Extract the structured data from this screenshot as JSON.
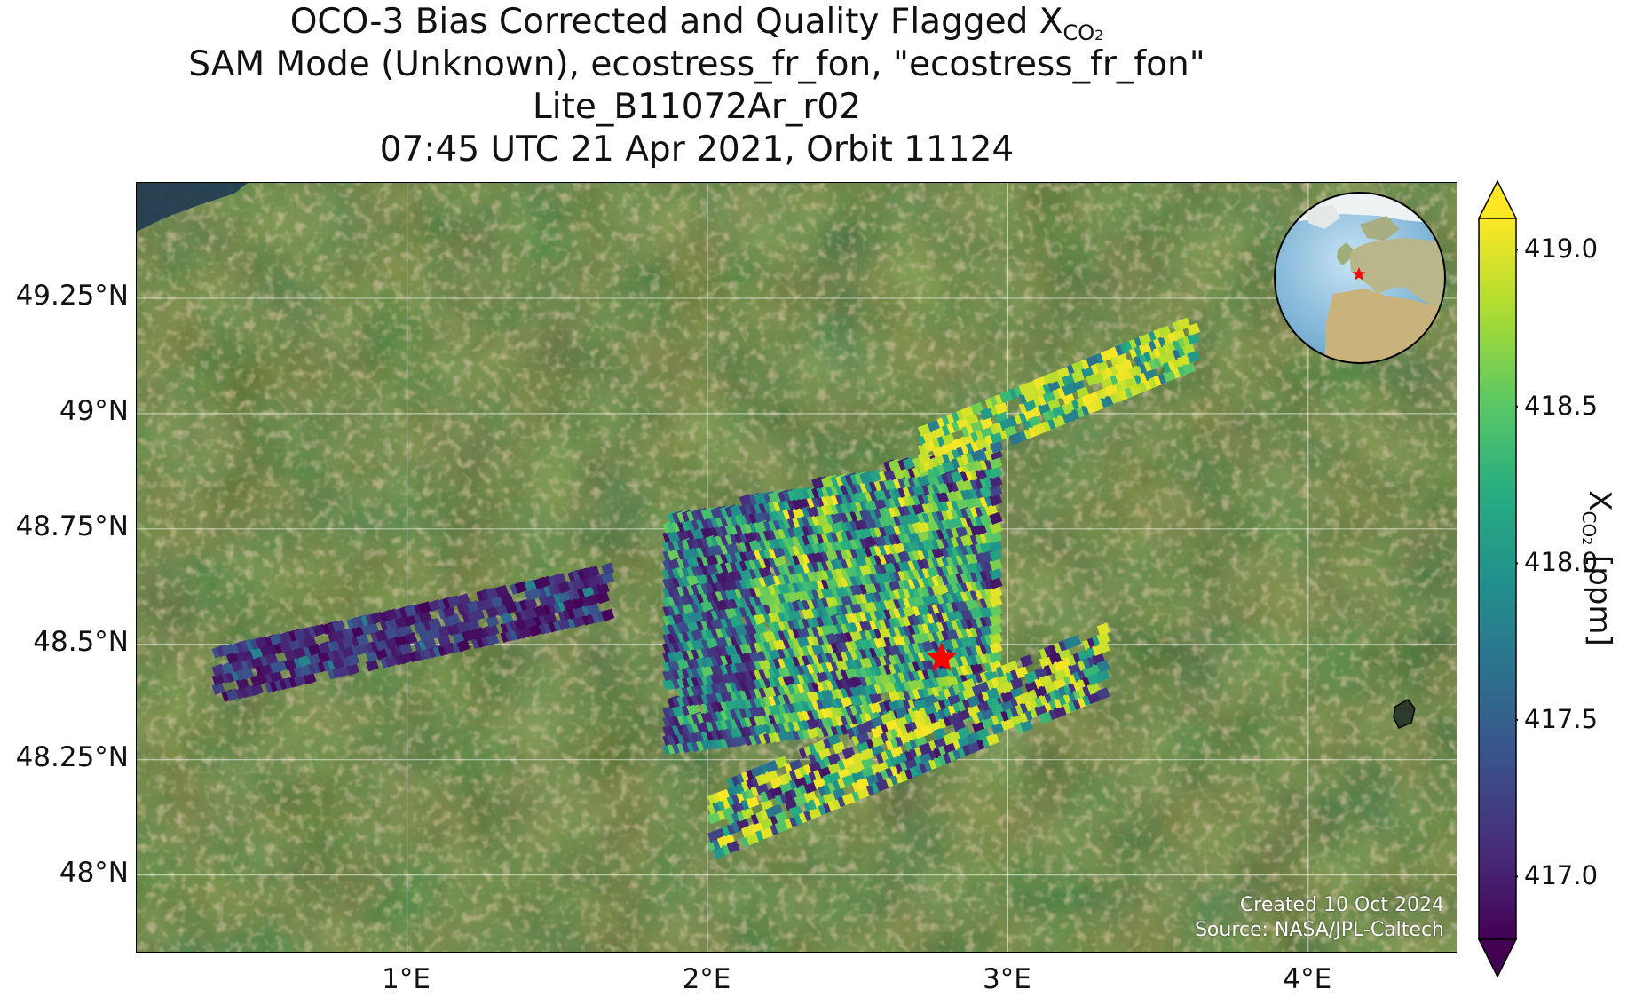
{
  "title": {
    "line1": "OCO-3 Bias Corrected and Quality Flagged X",
    "line1_sub": "CO",
    "line1_sub2": "2",
    "line2": "SAM Mode (Unknown), ecostress_fr_fon, \"ecostress_fr_fon\"",
    "line3": "Lite_B11072Ar_r02",
    "line4": "07:45 UTC 21 Apr 2021, Orbit 11124"
  },
  "map": {
    "lon_range": [
      0.1,
      4.5
    ],
    "lat_range": [
      47.83,
      49.5
    ],
    "lon_ticks": [
      {
        "value": 1,
        "label": "1°E"
      },
      {
        "value": 2,
        "label": "2°E"
      },
      {
        "value": 3,
        "label": "3°E"
      },
      {
        "value": 4,
        "label": "4°E"
      }
    ],
    "lat_ticks": [
      {
        "value": 49.25,
        "label": "49.25°N"
      },
      {
        "value": 49.0,
        "label": "49°N"
      },
      {
        "value": 48.75,
        "label": "48.75°N"
      },
      {
        "value": 48.5,
        "label": "48.5°N"
      },
      {
        "value": 48.25,
        "label": "48.25°N"
      },
      {
        "value": 48.0,
        "label": "48°N"
      }
    ],
    "target_marker": {
      "lon": 2.78,
      "lat": 48.47,
      "color": "#ff0000",
      "icon": "star-icon"
    },
    "basemap": "satellite-imagery",
    "grid": true
  },
  "credits": {
    "created": "Created 10 Oct 2024",
    "source": "Source: NASA/JPL-Caltech"
  },
  "colorbar": {
    "colormap": "viridis",
    "vmin": 416.8,
    "vmax": 419.1,
    "extend": "both",
    "ticks": [
      {
        "value": 417.0,
        "label": "417.0"
      },
      {
        "value": 417.5,
        "label": "417.5"
      },
      {
        "value": 418.0,
        "label": "418.0"
      },
      {
        "value": 418.5,
        "label": "418.5"
      },
      {
        "value": 419.0,
        "label": "419.0"
      }
    ],
    "label": "X",
    "label_sub": "CO",
    "label_sub2": "2",
    "label_units": " [ppm]"
  },
  "inset": {
    "type": "orthographic-globe",
    "marker_color": "#ff0000"
  },
  "chart_data": {
    "type": "heatmap",
    "swaths": [
      {
        "name": "western-strip",
        "lon_range": [
          0.35,
          1.65
        ],
        "lat_center_west": 48.44,
        "lat_center_east": 48.62,
        "dominant_range": [
          416.8,
          417.4
        ]
      },
      {
        "name": "main-block",
        "lon_range": [
          1.85,
          2.95
        ],
        "lat_range": [
          48.28,
          48.9
        ],
        "dominant_range": [
          416.9,
          419.1
        ]
      },
      {
        "name": "north-east-strip",
        "lon_range": [
          2.7,
          3.6
        ],
        "lat_range": [
          48.85,
          49.2
        ],
        "dominant_range": [
          418.0,
          419.1
        ]
      },
      {
        "name": "south-east-strip",
        "lon_range": [
          2.0,
          3.3
        ],
        "lat_range": [
          48.05,
          48.55
        ],
        "dominant_range": [
          416.9,
          419.1
        ]
      }
    ]
  }
}
